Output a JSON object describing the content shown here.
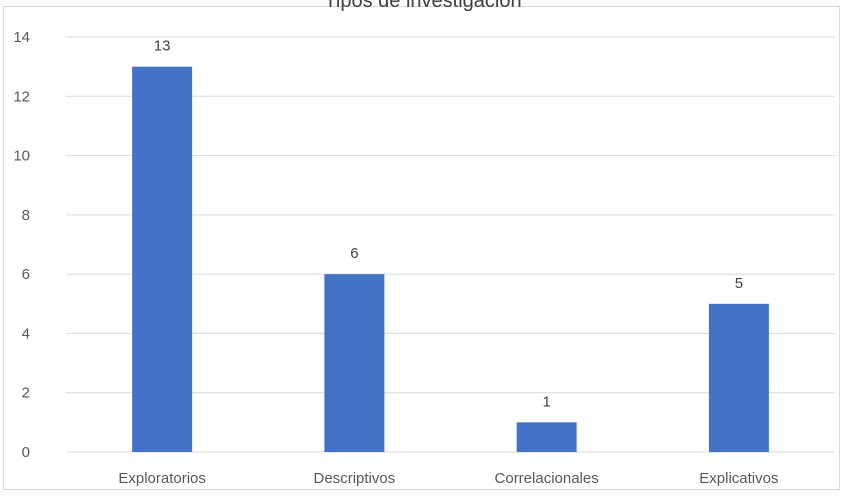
{
  "chart_data": {
    "type": "bar",
    "title": "Tipos de investigación",
    "xlabel": "",
    "ylabel": "",
    "categories": [
      "Exploratorios",
      "Descriptivos",
      "Correlacionales",
      "Explicativos"
    ],
    "values": [
      13,
      6,
      1,
      5
    ],
    "ylim": [
      0,
      14
    ],
    "yticks": [
      0,
      2,
      4,
      6,
      8,
      10,
      12,
      14
    ],
    "grid": true,
    "legend": "none",
    "bar_color": "#4472c4",
    "data_labels": [
      "13",
      "6",
      "1",
      "5"
    ]
  }
}
